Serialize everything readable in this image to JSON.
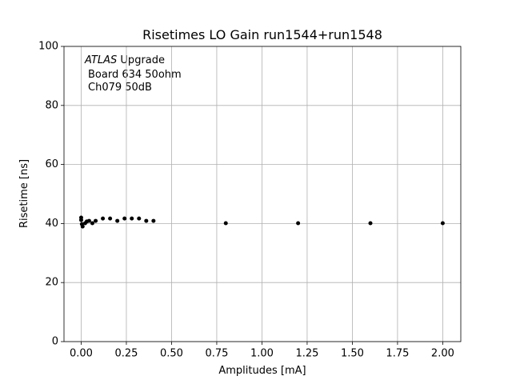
{
  "chart_data": {
    "type": "scatter",
    "title": "Risetimes LO Gain run1544+run1548",
    "xlabel": "Amplitudes [mA]",
    "ylabel": "Risetime [ns]",
    "annotation": {
      "emphasis": "ATLAS",
      "lines": [
        "Upgrade",
        "Board 634 50ohm",
        "Ch079 50dB"
      ]
    },
    "x": [
      0.0,
      0.0,
      0.004,
      0.008,
      0.022,
      0.031,
      0.044,
      0.062,
      0.08,
      0.12,
      0.16,
      0.2,
      0.24,
      0.28,
      0.32,
      0.36,
      0.4,
      0.8,
      1.2,
      1.6,
      2.0
    ],
    "values": [
      42.0,
      41.2,
      39.8,
      39.0,
      40.1,
      40.7,
      40.9,
      40.1,
      40.9,
      41.7,
      41.7,
      40.9,
      41.7,
      41.7,
      41.7,
      40.9,
      40.9,
      40.1,
      40.1,
      40.1,
      40.1
    ],
    "color": "#000000",
    "xlim": [
      -0.095,
      2.1
    ],
    "ylim": [
      0,
      100
    ],
    "xticks": [
      {
        "value": 0,
        "label": "0.00"
      },
      {
        "value": 0.25,
        "label": "0.25"
      },
      {
        "value": 0.5,
        "label": "0.50"
      },
      {
        "value": 0.75,
        "label": "0.75"
      },
      {
        "value": 1,
        "label": "1.00"
      },
      {
        "value": 1.25,
        "label": "1.25"
      },
      {
        "value": 1.5,
        "label": "1.50"
      },
      {
        "value": 1.75,
        "label": "1.75"
      },
      {
        "value": 2,
        "label": "2.00"
      }
    ],
    "yticks": [
      0,
      20,
      40,
      60,
      80,
      100
    ],
    "grid": true
  }
}
